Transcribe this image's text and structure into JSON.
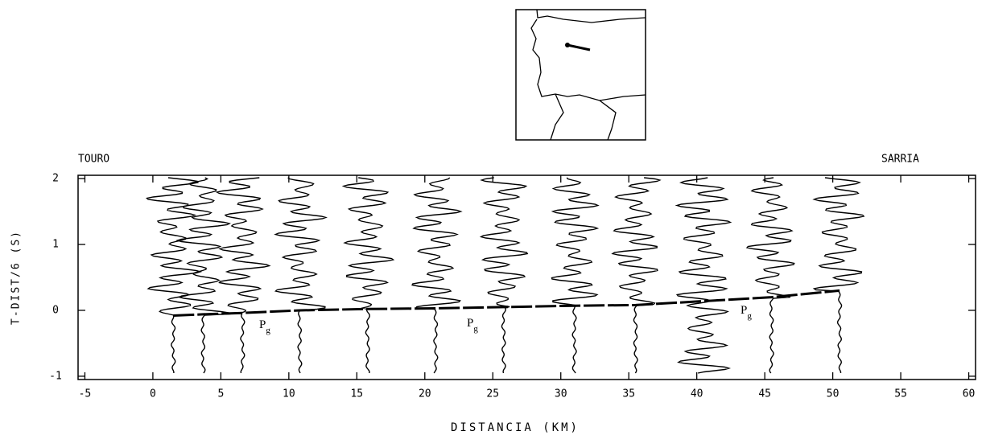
{
  "chart_data": {
    "type": "seismic",
    "left_label": "TOURO",
    "right_label": "SARRIA",
    "x_label": "DISTANCIA (KM)",
    "y_label": "T-DIST/6 (S)",
    "xlim": [
      -5.5,
      60.5
    ],
    "ylim": [
      -1.05,
      2.05
    ],
    "xticks": [
      -5,
      0,
      5,
      10,
      15,
      20,
      25,
      30,
      35,
      40,
      45,
      50,
      55,
      60
    ],
    "yticks": [
      -1,
      0,
      1,
      2
    ],
    "traces": [
      1.5,
      3.7,
      6.6,
      10.8,
      15.8,
      20.8,
      25.8,
      31.0,
      35.5,
      40.5,
      45.5,
      50.5
    ],
    "arrivals": {
      "x": [
        1.5,
        3.7,
        6.6,
        10.8,
        15.8,
        20.8,
        25.8,
        31.0,
        35.5,
        45.5,
        50.5
      ],
      "y": [
        -0.08,
        -0.06,
        -0.04,
        0.0,
        0.02,
        0.03,
        0.05,
        0.07,
        0.08,
        0.2,
        0.3
      ]
    },
    "annotations": [
      {
        "text": "P",
        "subscript": "g"
      },
      {
        "text": "P",
        "subscript": "g"
      },
      {
        "text": "P",
        "subscript": "g"
      }
    ],
    "color": "#000000"
  }
}
